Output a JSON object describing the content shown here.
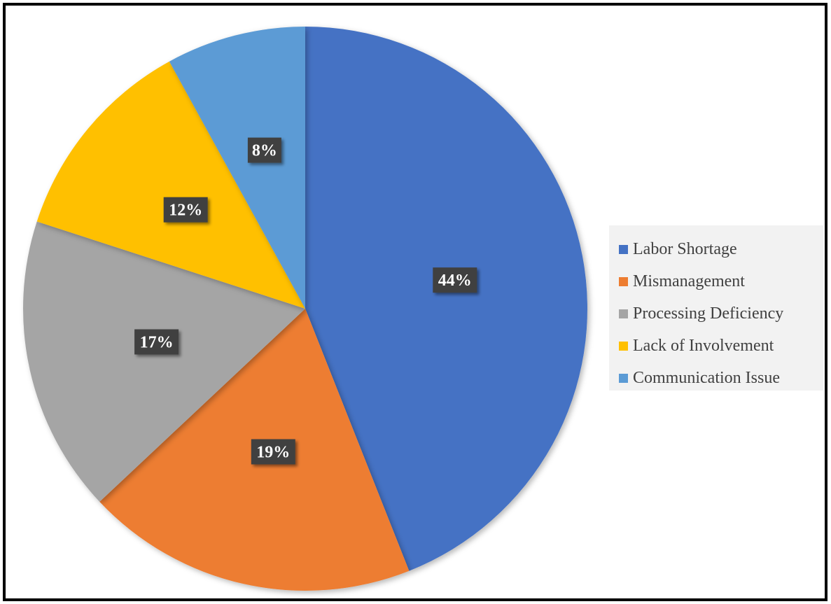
{
  "chart_data": {
    "type": "pie",
    "start_angle": "12 o'clock",
    "direction": "clockwise",
    "legend_position": "right",
    "slices": [
      {
        "name": "Labor Shortage",
        "value": 44,
        "label": "44%",
        "color": "#4472c4"
      },
      {
        "name": "Mismanagement",
        "value": 19,
        "label": "19%",
        "color": "#ed7d31"
      },
      {
        "name": "Processing Deficiency",
        "value": 17,
        "label": "17%",
        "color": "#a5a5a5"
      },
      {
        "name": "Lack of Involvement",
        "value": 12,
        "label": "12%",
        "color": "#ffc000"
      },
      {
        "name": "Communication Issue",
        "value": 8,
        "label": "8%",
        "color": "#5b9bd5"
      }
    ],
    "label_box_color": "#404040",
    "label_text_color": "#ffffff"
  }
}
